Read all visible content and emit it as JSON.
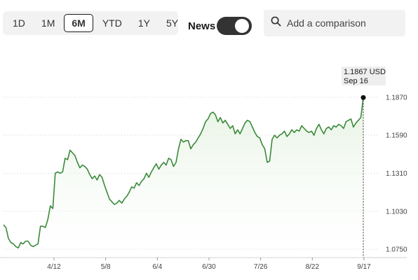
{
  "controls": {
    "ranges": [
      "1D",
      "1M",
      "6M",
      "YTD",
      "1Y",
      "5Y"
    ],
    "active_range": "6M",
    "news_label": "News",
    "news_on": true,
    "comparison_placeholder": "Add a comparison"
  },
  "icons": {
    "search": "search-icon"
  },
  "colors": {
    "line": "#3a8a3a",
    "fill_top": "#e3f1df",
    "active_border": "#1a1a1a"
  },
  "chart_data": {
    "type": "line",
    "title": "",
    "xlabel": "",
    "ylabel": "",
    "x_tick_labels": [
      "4/12",
      "5/8",
      "6/4",
      "6/30",
      "7/26",
      "8/22",
      "9/17"
    ],
    "y_ticks": [
      1.075,
      1.103,
      1.131,
      1.159,
      1.187
    ],
    "y_tick_labels": [
      "1.0750",
      "1.1030",
      "1.1310",
      "1.1590",
      "1.1870"
    ],
    "ylim": [
      1.0689,
      1.1967
    ],
    "grid": "horizontal dotted",
    "series": [
      {
        "values": [
          1.093,
          1.091,
          1.083,
          1.08,
          1.079,
          1.077,
          1.076,
          1.08,
          1.079,
          1.081,
          1.081,
          1.078,
          1.077,
          1.078,
          1.079,
          1.092,
          1.092,
          1.091,
          1.097,
          1.107,
          1.105,
          1.131,
          1.132,
          1.131,
          1.132,
          1.142,
          1.141,
          1.148,
          1.146,
          1.144,
          1.139,
          1.135,
          1.137,
          1.136,
          1.134,
          1.13,
          1.127,
          1.129,
          1.126,
          1.13,
          1.128,
          1.122,
          1.117,
          1.112,
          1.11,
          1.108,
          1.109,
          1.111,
          1.109,
          1.112,
          1.114,
          1.117,
          1.121,
          1.12,
          1.124,
          1.122,
          1.125,
          1.127,
          1.131,
          1.128,
          1.132,
          1.135,
          1.138,
          1.134,
          1.137,
          1.139,
          1.137,
          1.142,
          1.141,
          1.136,
          1.139,
          1.149,
          1.156,
          1.154,
          1.155,
          1.155,
          1.149,
          1.152,
          1.154,
          1.157,
          1.16,
          1.164,
          1.169,
          1.171,
          1.175,
          1.176,
          1.174,
          1.169,
          1.172,
          1.168,
          1.17,
          1.167,
          1.164,
          1.166,
          1.16,
          1.163,
          1.16,
          1.164,
          1.168,
          1.17,
          1.169,
          1.165,
          1.161,
          1.158,
          1.157,
          1.152,
          1.149,
          1.139,
          1.14,
          1.156,
          1.159,
          1.157,
          1.159,
          1.16,
          1.162,
          1.158,
          1.16,
          1.163,
          1.161,
          1.163,
          1.162,
          1.166,
          1.164,
          1.162,
          1.161,
          1.162,
          1.159,
          1.164,
          1.167,
          1.163,
          1.16,
          1.164,
          1.165,
          1.163,
          1.166,
          1.165,
          1.167,
          1.166,
          1.164,
          1.169,
          1.17,
          1.171,
          1.165,
          1.168,
          1.17,
          1.172,
          1.1867
        ]
      }
    ],
    "tooltip": {
      "value": "1.1867 USD",
      "date": "Sep 16"
    }
  }
}
